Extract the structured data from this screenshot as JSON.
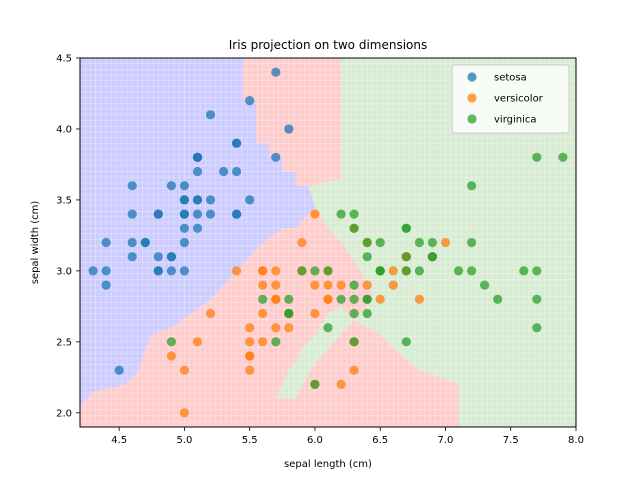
{
  "chart_data": {
    "type": "scatter",
    "title": "Iris projection on two dimensions",
    "xlabel": "sepal length (cm)",
    "ylabel": "sepal width (cm)",
    "xlim": [
      4.2,
      8.0
    ],
    "ylim": [
      1.9,
      4.5
    ],
    "xticks": [
      "4.5",
      "5.0",
      "5.5",
      "6.0",
      "6.5",
      "7.0",
      "7.5",
      "8.0"
    ],
    "yticks": [
      "2.0",
      "2.5",
      "3.0",
      "3.5",
      "4.0",
      "4.5"
    ],
    "grid": true,
    "legend_position": "top-right",
    "regions": [
      {
        "name": "setosa",
        "color": "#ccccff"
      },
      {
        "name": "versicolor",
        "color": "#ffcccc"
      },
      {
        "name": "virginica",
        "color": "#d7ecd2"
      }
    ],
    "series": [
      {
        "name": "setosa",
        "color": "#1f77b4",
        "points": [
          [
            5.1,
            3.5
          ],
          [
            4.9,
            3.0
          ],
          [
            4.7,
            3.2
          ],
          [
            4.6,
            3.1
          ],
          [
            5.0,
            3.6
          ],
          [
            5.4,
            3.9
          ],
          [
            4.6,
            3.4
          ],
          [
            5.0,
            3.4
          ],
          [
            4.4,
            2.9
          ],
          [
            4.9,
            3.1
          ],
          [
            5.4,
            3.7
          ],
          [
            4.8,
            3.4
          ],
          [
            4.8,
            3.0
          ],
          [
            4.3,
            3.0
          ],
          [
            5.8,
            4.0
          ],
          [
            5.7,
            4.4
          ],
          [
            5.4,
            3.9
          ],
          [
            5.1,
            3.5
          ],
          [
            5.7,
            3.8
          ],
          [
            5.1,
            3.8
          ],
          [
            5.4,
            3.4
          ],
          [
            5.1,
            3.7
          ],
          [
            4.6,
            3.6
          ],
          [
            5.1,
            3.3
          ],
          [
            4.8,
            3.4
          ],
          [
            5.0,
            3.0
          ],
          [
            5.0,
            3.4
          ],
          [
            5.2,
            3.5
          ],
          [
            5.2,
            3.4
          ],
          [
            4.7,
            3.2
          ],
          [
            4.8,
            3.1
          ],
          [
            5.4,
            3.4
          ],
          [
            5.2,
            4.1
          ],
          [
            5.5,
            4.2
          ],
          [
            4.9,
            3.1
          ],
          [
            5.0,
            3.2
          ],
          [
            5.5,
            3.5
          ],
          [
            4.4,
            3.0
          ],
          [
            5.1,
            3.4
          ],
          [
            5.0,
            3.5
          ],
          [
            4.5,
            2.3
          ],
          [
            4.4,
            3.2
          ],
          [
            5.0,
            3.5
          ],
          [
            5.1,
            3.8
          ],
          [
            4.8,
            3.0
          ],
          [
            5.1,
            3.8
          ],
          [
            4.6,
            3.2
          ],
          [
            5.3,
            3.7
          ],
          [
            5.0,
            3.3
          ],
          [
            4.9,
            3.6
          ]
        ]
      },
      {
        "name": "versicolor",
        "color": "#ff7f0e",
        "points": [
          [
            7.0,
            3.2
          ],
          [
            6.4,
            3.2
          ],
          [
            6.9,
            3.1
          ],
          [
            5.5,
            2.3
          ],
          [
            6.5,
            2.8
          ],
          [
            5.7,
            2.8
          ],
          [
            6.3,
            3.3
          ],
          [
            4.9,
            2.4
          ],
          [
            6.6,
            2.9
          ],
          [
            5.2,
            2.7
          ],
          [
            5.0,
            2.0
          ],
          [
            5.9,
            3.0
          ],
          [
            6.0,
            2.2
          ],
          [
            6.1,
            2.9
          ],
          [
            5.6,
            2.9
          ],
          [
            6.7,
            3.1
          ],
          [
            5.6,
            3.0
          ],
          [
            5.8,
            2.7
          ],
          [
            6.2,
            2.2
          ],
          [
            5.6,
            2.5
          ],
          [
            5.9,
            3.2
          ],
          [
            6.1,
            2.8
          ],
          [
            6.3,
            2.5
          ],
          [
            6.1,
            2.8
          ],
          [
            6.4,
            2.9
          ],
          [
            6.6,
            3.0
          ],
          [
            6.8,
            2.8
          ],
          [
            6.7,
            3.0
          ],
          [
            6.0,
            2.9
          ],
          [
            5.7,
            2.6
          ],
          [
            5.5,
            2.4
          ],
          [
            5.5,
            2.4
          ],
          [
            5.8,
            2.7
          ],
          [
            6.0,
            2.7
          ],
          [
            5.4,
            3.0
          ],
          [
            6.0,
            3.4
          ],
          [
            6.7,
            3.1
          ],
          [
            6.3,
            2.3
          ],
          [
            5.6,
            3.0
          ],
          [
            5.5,
            2.5
          ],
          [
            5.5,
            2.6
          ],
          [
            6.1,
            3.0
          ],
          [
            5.8,
            2.6
          ],
          [
            5.0,
            2.3
          ],
          [
            5.6,
            2.7
          ],
          [
            5.7,
            3.0
          ],
          [
            5.7,
            2.9
          ],
          [
            6.2,
            2.9
          ],
          [
            5.1,
            2.5
          ],
          [
            5.7,
            2.8
          ]
        ]
      },
      {
        "name": "virginica",
        "color": "#2ca02c",
        "points": [
          [
            6.3,
            3.3
          ],
          [
            5.8,
            2.7
          ],
          [
            7.1,
            3.0
          ],
          [
            6.3,
            2.9
          ],
          [
            6.5,
            3.0
          ],
          [
            7.6,
            3.0
          ],
          [
            4.9,
            2.5
          ],
          [
            7.3,
            2.9
          ],
          [
            6.7,
            2.5
          ],
          [
            7.2,
            3.6
          ],
          [
            6.5,
            3.2
          ],
          [
            6.4,
            2.7
          ],
          [
            6.8,
            3.0
          ],
          [
            5.7,
            2.5
          ],
          [
            5.8,
            2.8
          ],
          [
            6.4,
            3.2
          ],
          [
            6.5,
            3.0
          ],
          [
            7.7,
            3.8
          ],
          [
            7.7,
            2.6
          ],
          [
            6.0,
            2.2
          ],
          [
            6.9,
            3.2
          ],
          [
            5.6,
            2.8
          ],
          [
            7.7,
            2.8
          ],
          [
            6.3,
            2.7
          ],
          [
            6.7,
            3.3
          ],
          [
            7.2,
            3.2
          ],
          [
            6.2,
            2.8
          ],
          [
            6.1,
            3.0
          ],
          [
            6.4,
            2.8
          ],
          [
            7.2,
            3.0
          ],
          [
            7.4,
            2.8
          ],
          [
            7.9,
            3.8
          ],
          [
            6.4,
            2.8
          ],
          [
            6.3,
            2.8
          ],
          [
            6.1,
            2.6
          ],
          [
            7.7,
            3.0
          ],
          [
            6.3,
            3.4
          ],
          [
            6.4,
            3.1
          ],
          [
            6.0,
            3.0
          ],
          [
            6.9,
            3.1
          ],
          [
            6.7,
            3.1
          ],
          [
            6.9,
            3.1
          ],
          [
            5.8,
            2.7
          ],
          [
            6.8,
            3.2
          ],
          [
            6.7,
            3.3
          ],
          [
            6.7,
            3.0
          ],
          [
            6.3,
            2.5
          ],
          [
            6.5,
            3.0
          ],
          [
            6.2,
            3.4
          ],
          [
            5.9,
            3.0
          ]
        ]
      }
    ]
  }
}
